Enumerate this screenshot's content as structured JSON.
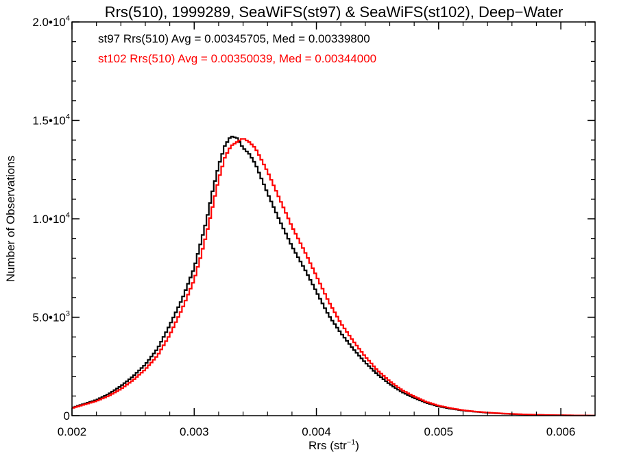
{
  "chart_data": {
    "type": "histogram-step",
    "title": "Rrs(510), 1999289, SeaWiFS(st97) & SeaWiFS(st102), Deep−Water",
    "xlabel": "Rrs (str",
    "xlabel_superscript": "−1",
    "xlabel_close": ")",
    "ylabel": "Number of Observations",
    "xlim": [
      0.002,
      0.00628
    ],
    "ylim": [
      0,
      20000
    ],
    "x_ticks": [
      {
        "value": 0.002,
        "label": "0.002"
      },
      {
        "value": 0.003,
        "label": "0.003"
      },
      {
        "value": 0.004,
        "label": "0.004"
      },
      {
        "value": 0.005,
        "label": "0.005"
      },
      {
        "value": 0.006,
        "label": "0.006"
      }
    ],
    "y_ticks": [
      {
        "value": 0,
        "mantissa": "0",
        "exponent": ""
      },
      {
        "value": 5000,
        "mantissa": "5.0•10",
        "exponent": "3"
      },
      {
        "value": 10000,
        "mantissa": "1.0•10",
        "exponent": "4"
      },
      {
        "value": 15000,
        "mantissa": "1.5•10",
        "exponent": "4"
      },
      {
        "value": 20000,
        "mantissa": "2.0•10",
        "exponent": "4"
      }
    ],
    "grid": false,
    "annotations": [
      {
        "text": "st97 Rrs(510) Avg = 0.00345705, Med = 0.00339800",
        "color": "#000000"
      },
      {
        "text": "st102 Rrs(510) Avg = 0.00350039, Med = 0.00344000",
        "color": "#ff0000"
      }
    ],
    "bin_width": 2e-05,
    "series": [
      {
        "color": "#000000",
        "x": [
          0.002,
          0.0021,
          0.0022,
          0.0023,
          0.0024,
          0.0025,
          0.0026,
          0.0027,
          0.0028,
          0.0029,
          0.003,
          0.00305,
          0.0031,
          0.00315,
          0.0032,
          0.00325,
          0.0033,
          0.00335,
          0.0034,
          0.00345,
          0.0035,
          0.0036,
          0.0037,
          0.0038,
          0.0039,
          0.004,
          0.0041,
          0.0042,
          0.0043,
          0.0044,
          0.0045,
          0.0046,
          0.0047,
          0.0048,
          0.0049,
          0.005,
          0.0051,
          0.0052,
          0.0053,
          0.0054,
          0.0055,
          0.0056,
          0.0057,
          0.0058,
          0.0059,
          0.006,
          0.0061,
          0.0062,
          0.00628
        ],
        "y": [
          400,
          600,
          800,
          1100,
          1500,
          2000,
          2600,
          3400,
          4600,
          5900,
          7500,
          8700,
          9900,
          11400,
          12700,
          13700,
          14200,
          14100,
          13600,
          13300,
          12800,
          11300,
          9900,
          8600,
          7500,
          6300,
          5100,
          4200,
          3400,
          2700,
          2100,
          1600,
          1200,
          900,
          650,
          470,
          350,
          260,
          200,
          150,
          110,
          80,
          60,
          40,
          30,
          20,
          15,
          10,
          5
        ]
      },
      {
        "color": "#ff0000",
        "x": [
          0.002,
          0.0021,
          0.0022,
          0.0023,
          0.0024,
          0.0025,
          0.0026,
          0.0027,
          0.0028,
          0.0029,
          0.003,
          0.00305,
          0.0031,
          0.00315,
          0.0032,
          0.00325,
          0.0033,
          0.00335,
          0.0034,
          0.00345,
          0.0035,
          0.0036,
          0.0037,
          0.0038,
          0.0039,
          0.004,
          0.0041,
          0.0042,
          0.0043,
          0.0044,
          0.0045,
          0.0046,
          0.0047,
          0.0048,
          0.0049,
          0.005,
          0.0051,
          0.0052,
          0.0053,
          0.0054,
          0.0055,
          0.0056,
          0.0057,
          0.0058,
          0.0059,
          0.006,
          0.0061,
          0.0062,
          0.00628
        ],
        "y": [
          380,
          560,
          740,
          1000,
          1350,
          1800,
          2350,
          3050,
          4100,
          5400,
          6900,
          8000,
          9200,
          10600,
          12000,
          13100,
          13700,
          13900,
          14100,
          13900,
          13600,
          12400,
          11000,
          9600,
          8400,
          7100,
          5800,
          4700,
          3800,
          3000,
          2300,
          1750,
          1300,
          980,
          700,
          510,
          380,
          280,
          210,
          160,
          120,
          90,
          65,
          45,
          32,
          22,
          16,
          11,
          6
        ]
      }
    ]
  }
}
